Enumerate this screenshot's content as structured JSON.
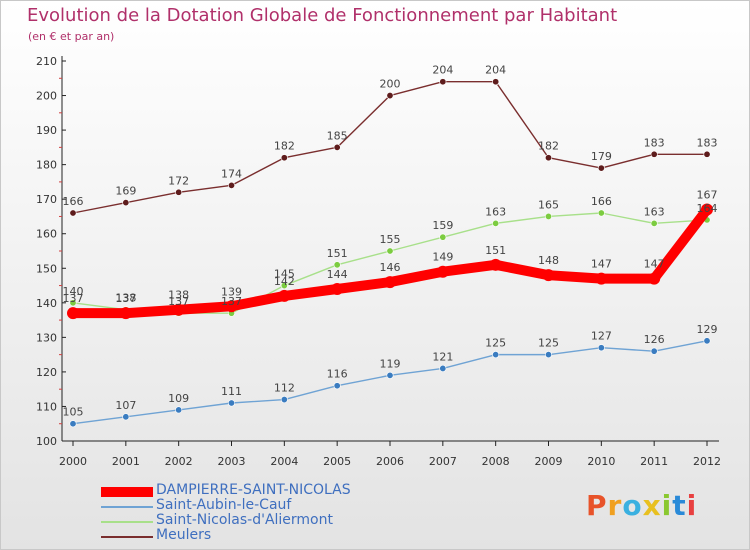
{
  "title": "Evolution de la Dotation Globale de Fonctionnement par Habitant",
  "subtitle": "(en € et par an)",
  "logo": {
    "text": "Proxiti",
    "colors": [
      "#e8532a",
      "#f0a020",
      "#3ab0e0",
      "#e8c020",
      "#8ac830",
      "#2a8ad8",
      "#e84040"
    ]
  },
  "chart_data": {
    "type": "line",
    "x": [
      2000,
      2001,
      2002,
      2003,
      2004,
      2005,
      2006,
      2007,
      2008,
      2009,
      2010,
      2011,
      2012
    ],
    "x_tick_labels": [
      "2000",
      "2001",
      "2002",
      "2003",
      "2004",
      "2005",
      "2006",
      "2007",
      "2008",
      "2009",
      "2010",
      "2011",
      "2012"
    ],
    "ylim": [
      100,
      210
    ],
    "y_ticks": [
      100,
      110,
      120,
      130,
      140,
      150,
      160,
      170,
      180,
      190,
      200,
      210
    ],
    "grid": false,
    "legend_position": "bottom-left",
    "series": [
      {
        "name": "DAMPIERRE-SAINT-NICOLAS",
        "color": "#ff0000",
        "emphasis": "thick",
        "values": [
          137,
          137,
          138,
          139,
          142,
          144,
          146,
          149,
          151,
          148,
          147,
          147,
          167
        ]
      },
      {
        "name": "Saint-Aubin-le-Cauf",
        "color": "#6fa3d4",
        "marker": "#3a7cc0",
        "values": [
          105,
          107,
          109,
          111,
          112,
          116,
          119,
          121,
          125,
          125,
          127,
          126,
          129
        ]
      },
      {
        "name": "Saint-Nicolas-d'Aliermont",
        "color": "#a8e08a",
        "marker": "#7ccc40",
        "values": [
          140,
          138,
          137,
          137,
          145,
          151,
          155,
          159,
          163,
          165,
          166,
          163,
          164
        ]
      },
      {
        "name": "Meulers",
        "color": "#7a2e2e",
        "marker": "#5e1c1c",
        "values": [
          166,
          169,
          172,
          174,
          182,
          185,
          200,
          204,
          204,
          182,
          179,
          183,
          183
        ]
      }
    ]
  }
}
